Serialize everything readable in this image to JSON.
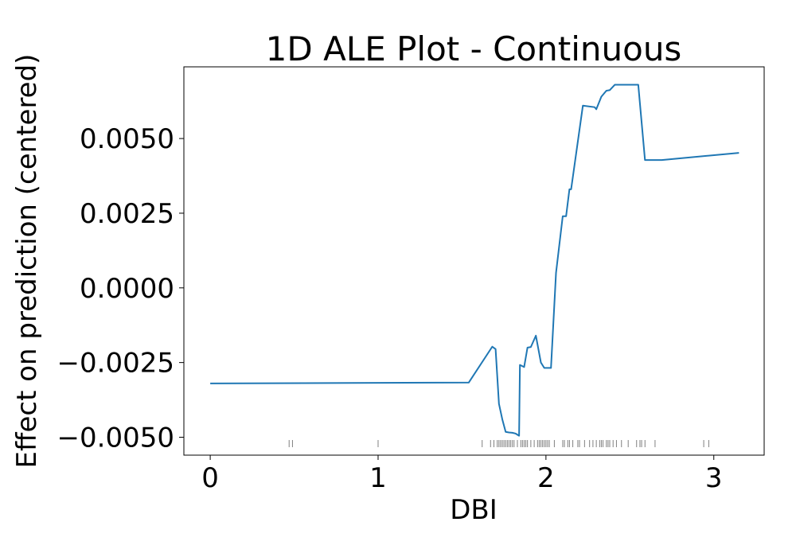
{
  "chart_data": {
    "type": "line",
    "title": "1D ALE Plot - Continuous",
    "xlabel": "DBI",
    "ylabel": "Effect on prediction (centered)",
    "xlim": [
      -0.157,
      3.3
    ],
    "ylim": [
      -0.0056,
      0.0074
    ],
    "xticks": [
      0,
      1,
      2,
      3
    ],
    "xtick_labels": [
      "0",
      "1",
      "2",
      "3"
    ],
    "yticks": [
      -0.005,
      -0.0025,
      0.0,
      0.0025,
      0.005
    ],
    "ytick_labels": [
      "−0.0050",
      "−0.0025",
      "0.0000",
      "0.0025",
      "0.0050"
    ],
    "grid": false,
    "line_color": "#1f77b4",
    "rug_color": "#808080",
    "series": [
      {
        "x": [
          0.0,
          1.54,
          1.68,
          1.7,
          1.72,
          1.74,
          1.76,
          1.78,
          1.8,
          1.82,
          1.84,
          1.845,
          1.87,
          1.89,
          1.91,
          1.94,
          1.97,
          1.99,
          2.03,
          2.06,
          2.1,
          2.12,
          2.14,
          2.15,
          2.22,
          2.29,
          2.3,
          2.33,
          2.36,
          2.38,
          2.41,
          2.46,
          2.5,
          2.55,
          2.59,
          2.69,
          3.15
        ],
        "y": [
          -0.0032,
          -0.00317,
          -0.00197,
          -0.00205,
          -0.00388,
          -0.0044,
          -0.00482,
          -0.00484,
          -0.00485,
          -0.00488,
          -0.00495,
          -0.00258,
          -0.00265,
          -0.002,
          -0.00198,
          -0.0016,
          -0.0025,
          -0.00268,
          -0.00268,
          0.0005,
          0.0024,
          0.0024,
          0.0033,
          0.0033,
          0.0061,
          0.00605,
          0.00598,
          0.0064,
          0.0066,
          0.00662,
          0.0068,
          0.0068,
          0.0068,
          0.0068,
          0.00428,
          0.00428,
          0.00452
        ]
      }
    ],
    "rug": [
      0.47,
      0.49,
      1.0,
      1.62,
      1.67,
      1.69,
      1.71,
      1.72,
      1.73,
      1.74,
      1.75,
      1.76,
      1.77,
      1.78,
      1.79,
      1.8,
      1.81,
      1.83,
      1.85,
      1.86,
      1.87,
      1.88,
      1.89,
      1.91,
      1.93,
      1.95,
      1.96,
      1.97,
      1.98,
      1.99,
      2.0,
      2.01,
      2.02,
      2.05,
      2.1,
      2.11,
      2.13,
      2.14,
      2.16,
      2.19,
      2.2,
      2.23,
      2.26,
      2.28,
      2.3,
      2.32,
      2.33,
      2.34,
      2.36,
      2.37,
      2.38,
      2.4,
      2.42,
      2.45,
      2.49,
      2.54,
      2.56,
      2.57,
      2.59,
      2.65,
      2.94,
      2.97
    ]
  }
}
